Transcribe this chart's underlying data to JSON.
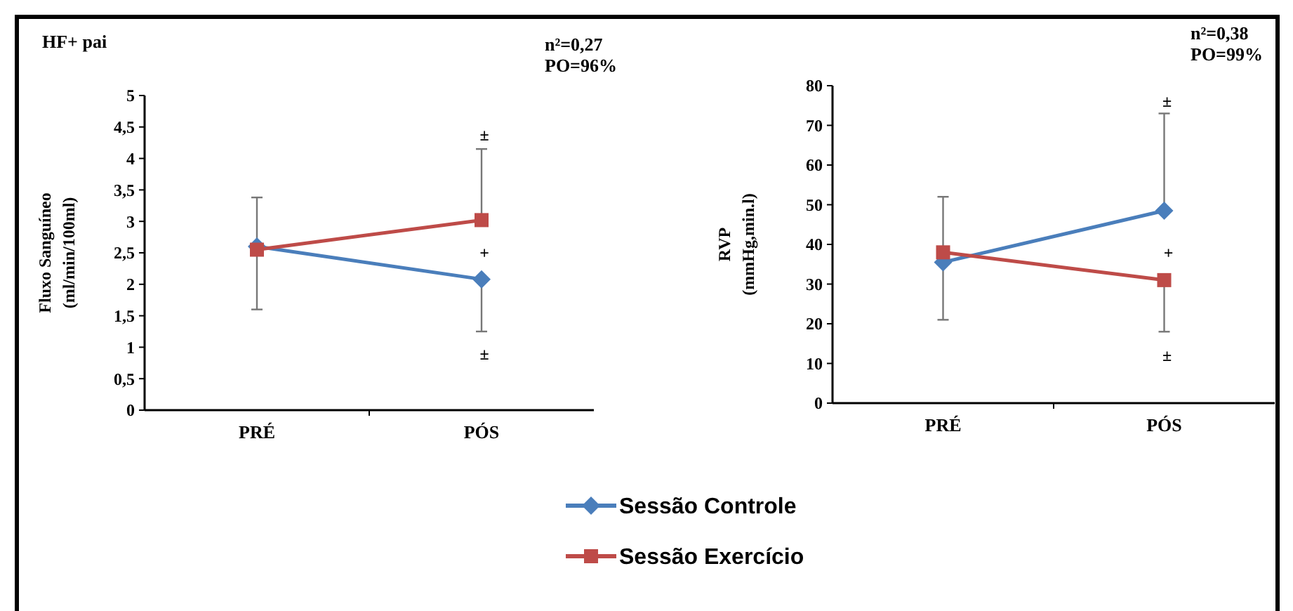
{
  "chart_data": [
    {
      "type": "line",
      "title": "HF+ pai",
      "ylabel": "Fluxo Sanguíneo\n(ml/min/100ml)",
      "categories": [
        "PRÉ",
        "PÓS"
      ],
      "ylim": [
        0,
        5
      ],
      "yticks": [
        0,
        {
          "value": 0.5,
          "label": "0,5"
        },
        1,
        {
          "value": 1.5,
          "label": "1,5"
        },
        2,
        {
          "value": 2.5,
          "label": "2,5"
        },
        3,
        {
          "value": 3.5,
          "label": "3,5"
        },
        4,
        {
          "value": 4.5,
          "label": "4,5"
        },
        5
      ],
      "legend": "bottom",
      "series": [
        {
          "name": "Sessão Controle",
          "color": "#4a7ebb",
          "marker": "diamond",
          "values": [
            2.6,
            2.08
          ],
          "errors": [
            null,
            [
              1.25,
              2.08
            ]
          ]
        },
        {
          "name": "Sessão Exercício",
          "color": "#be4b48",
          "marker": "square",
          "values": [
            2.55,
            3.02
          ],
          "errors": [
            [
              1.6,
              3.38
            ],
            [
              3.02,
              4.15
            ]
          ]
        }
      ],
      "annotations": [
        "n²=0,27\nPO=96%",
        "±",
        "+",
        "±"
      ]
    },
    {
      "type": "line",
      "ylabel": "RVP\n(mmHg,min.l)",
      "categories": [
        "PRÉ",
        "PÓS"
      ],
      "ylim": [
        0,
        80
      ],
      "yticks": [
        0,
        10,
        20,
        30,
        40,
        50,
        60,
        70,
        80
      ],
      "series": [
        {
          "name": "Sessão Controle",
          "color": "#4a7ebb",
          "marker": "diamond",
          "values": [
            35.5,
            48.5
          ],
          "errors": [
            [
              21,
              52
            ],
            [
              48.5,
              73
            ]
          ]
        },
        {
          "name": "Sessão Exercício",
          "color": "#be4b48",
          "marker": "square",
          "values": [
            38,
            31
          ],
          "errors": [
            null,
            [
              18,
              31
            ]
          ]
        }
      ],
      "annotations": [
        "n²=0,38\nPO=99%",
        "±",
        "+",
        "±"
      ]
    }
  ]
}
